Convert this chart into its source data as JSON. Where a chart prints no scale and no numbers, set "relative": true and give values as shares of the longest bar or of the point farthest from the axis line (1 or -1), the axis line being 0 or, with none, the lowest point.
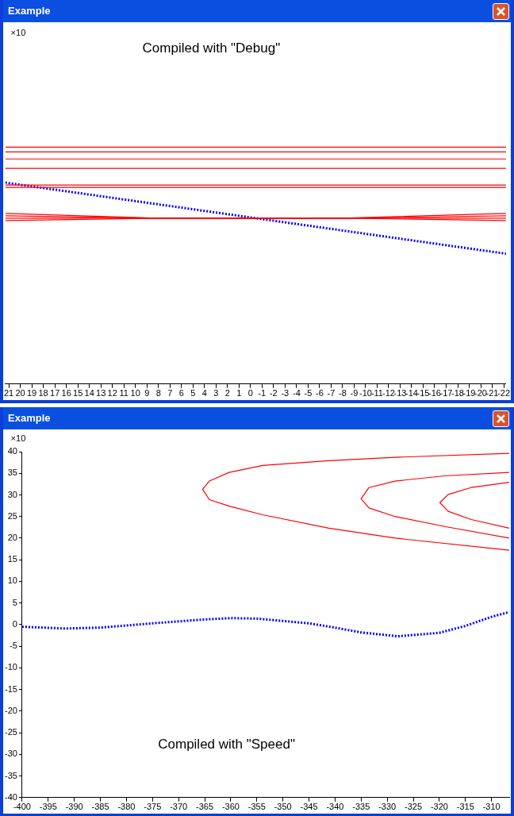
{
  "chart_data": [
    {
      "type": "line",
      "title": "Example",
      "annotations": [
        "×10",
        "Compiled with \"Debug\""
      ],
      "relative": true,
      "marker": "none",
      "grid": false,
      "xlim": [
        21.3,
        -22.2
      ],
      "xticks": [
        21,
        20,
        19,
        18,
        17,
        16,
        15,
        14,
        13,
        12,
        11,
        10,
        9,
        8,
        7,
        6,
        5,
        4,
        3,
        2,
        1,
        0,
        -1,
        -2,
        -3,
        -4,
        -5,
        -6,
        -7,
        -8,
        -9,
        -10,
        -11,
        -12,
        -13,
        -14,
        -15,
        -16,
        -17,
        -18,
        -19,
        -20,
        -21,
        -22
      ],
      "series": [
        {
          "color": "#ff0000",
          "line_style": "solid",
          "x": [
            21.3,
            -22.2
          ],
          "values": [
            1,
            1
          ]
        },
        {
          "color": "#ff0000",
          "line_style": "solid",
          "x": [
            21.3,
            -22.2
          ],
          "values": [
            0.98,
            0.98
          ]
        },
        {
          "color": "#ff0000",
          "line_style": "solid",
          "x": [
            21.3,
            -22.2
          ],
          "values": [
            0.95,
            0.95
          ]
        },
        {
          "color": "#ff0000",
          "line_style": "solid",
          "x": [
            21.3,
            -22.2
          ],
          "values": [
            0.91,
            0.91
          ]
        },
        {
          "color": "#ff0000",
          "line_style": "solid",
          "x": [
            21.3,
            -22.2
          ],
          "values": [
            0.84,
            0.84
          ]
        },
        {
          "color": "#ff0000",
          "line_style": "solid",
          "x": [
            21.3,
            -22.2
          ],
          "values": [
            0.83,
            0.83
          ]
        },
        {
          "color": "#ff0000",
          "line_style": "solid",
          "x": [
            21.3,
            8,
            -8,
            -22.2
          ],
          "values": [
            0.72,
            0.7,
            0.7,
            0.72
          ]
        },
        {
          "color": "#ff0000",
          "line_style": "solid",
          "x": [
            21.3,
            8,
            -8,
            -22.2
          ],
          "values": [
            0.71,
            0.7,
            0.7,
            0.71
          ]
        },
        {
          "color": "#ff0000",
          "line_style": "solid",
          "x": [
            21.3,
            8,
            -8,
            -22.2
          ],
          "values": [
            0.7,
            0.7,
            0.7,
            0.7
          ]
        },
        {
          "color": "#ff0000",
          "line_style": "solid",
          "x": [
            21.3,
            8,
            -8,
            -22.2
          ],
          "values": [
            0.69,
            0.7,
            0.7,
            0.69
          ]
        },
        {
          "color": "#0000ff",
          "line_style": "dotted",
          "x": [
            21.3,
            -22.2
          ],
          "values": [
            0.85,
            0.55
          ]
        }
      ]
    },
    {
      "type": "line",
      "title": "Example",
      "annotations": [
        "×10",
        "Compiled with \"Speed\""
      ],
      "marker": "none",
      "grid": false,
      "xlim": [
        -400,
        -306.6
      ],
      "xticks": [
        -400,
        -395,
        -390,
        -385,
        -380,
        -375,
        -370,
        -365,
        -360,
        -355,
        -350,
        -345,
        -340,
        -335,
        -330,
        -325,
        -320,
        -315,
        -310
      ],
      "ylim": [
        -40,
        40
      ],
      "yticks": [
        -40,
        -35,
        -30,
        -25,
        -20,
        -15,
        -10,
        -5,
        0,
        5,
        10,
        15,
        20,
        25,
        30,
        35,
        40
      ],
      "series": [
        {
          "color": "#ff0000",
          "line_style": "solid",
          "x": [
            -306.6,
            -328.5,
            -341.2,
            -353.9,
            -360.3,
            -364.1,
            -365.4,
            -364.1,
            -360.3,
            -353.9,
            -341.2,
            -328.5,
            -306.6
          ],
          "values": [
            17.2,
            20.0,
            22.3,
            25.4,
            27.4,
            28.9,
            31.3,
            33.2,
            35.2,
            36.8,
            37.9,
            38.7,
            39.6
          ]
        },
        {
          "color": "#ff0000",
          "line_style": "solid",
          "x": [
            -306.6,
            -319.0,
            -328.5,
            -333.5,
            -335.0,
            -333.5,
            -328.5,
            -319.0,
            -306.6
          ],
          "values": [
            20.0,
            22.7,
            25.0,
            27.0,
            29.1,
            31.7,
            33.2,
            34.4,
            35.2
          ]
        },
        {
          "color": "#ff0000",
          "line_style": "solid",
          "x": [
            -306.6,
            -313.9,
            -318.3,
            -319.9,
            -318.3,
            -313.9,
            -306.6
          ],
          "values": [
            22.3,
            24.3,
            26.2,
            28.2,
            30.1,
            31.7,
            32.9
          ]
        },
        {
          "color": "#0000ff",
          "line_style": "dotted",
          "x": [
            -400,
            -392,
            -385,
            -375,
            -365,
            -360,
            -355,
            -345,
            -340,
            -335,
            -328,
            -320,
            -315,
            -310,
            -306.6
          ],
          "values": [
            -0.5,
            -0.9,
            -0.7,
            0.3,
            1.2,
            1.5,
            1.4,
            0.3,
            -0.7,
            -1.8,
            -2.7,
            -1.9,
            -0.3,
            1.8,
            2.9
          ]
        }
      ]
    }
  ]
}
